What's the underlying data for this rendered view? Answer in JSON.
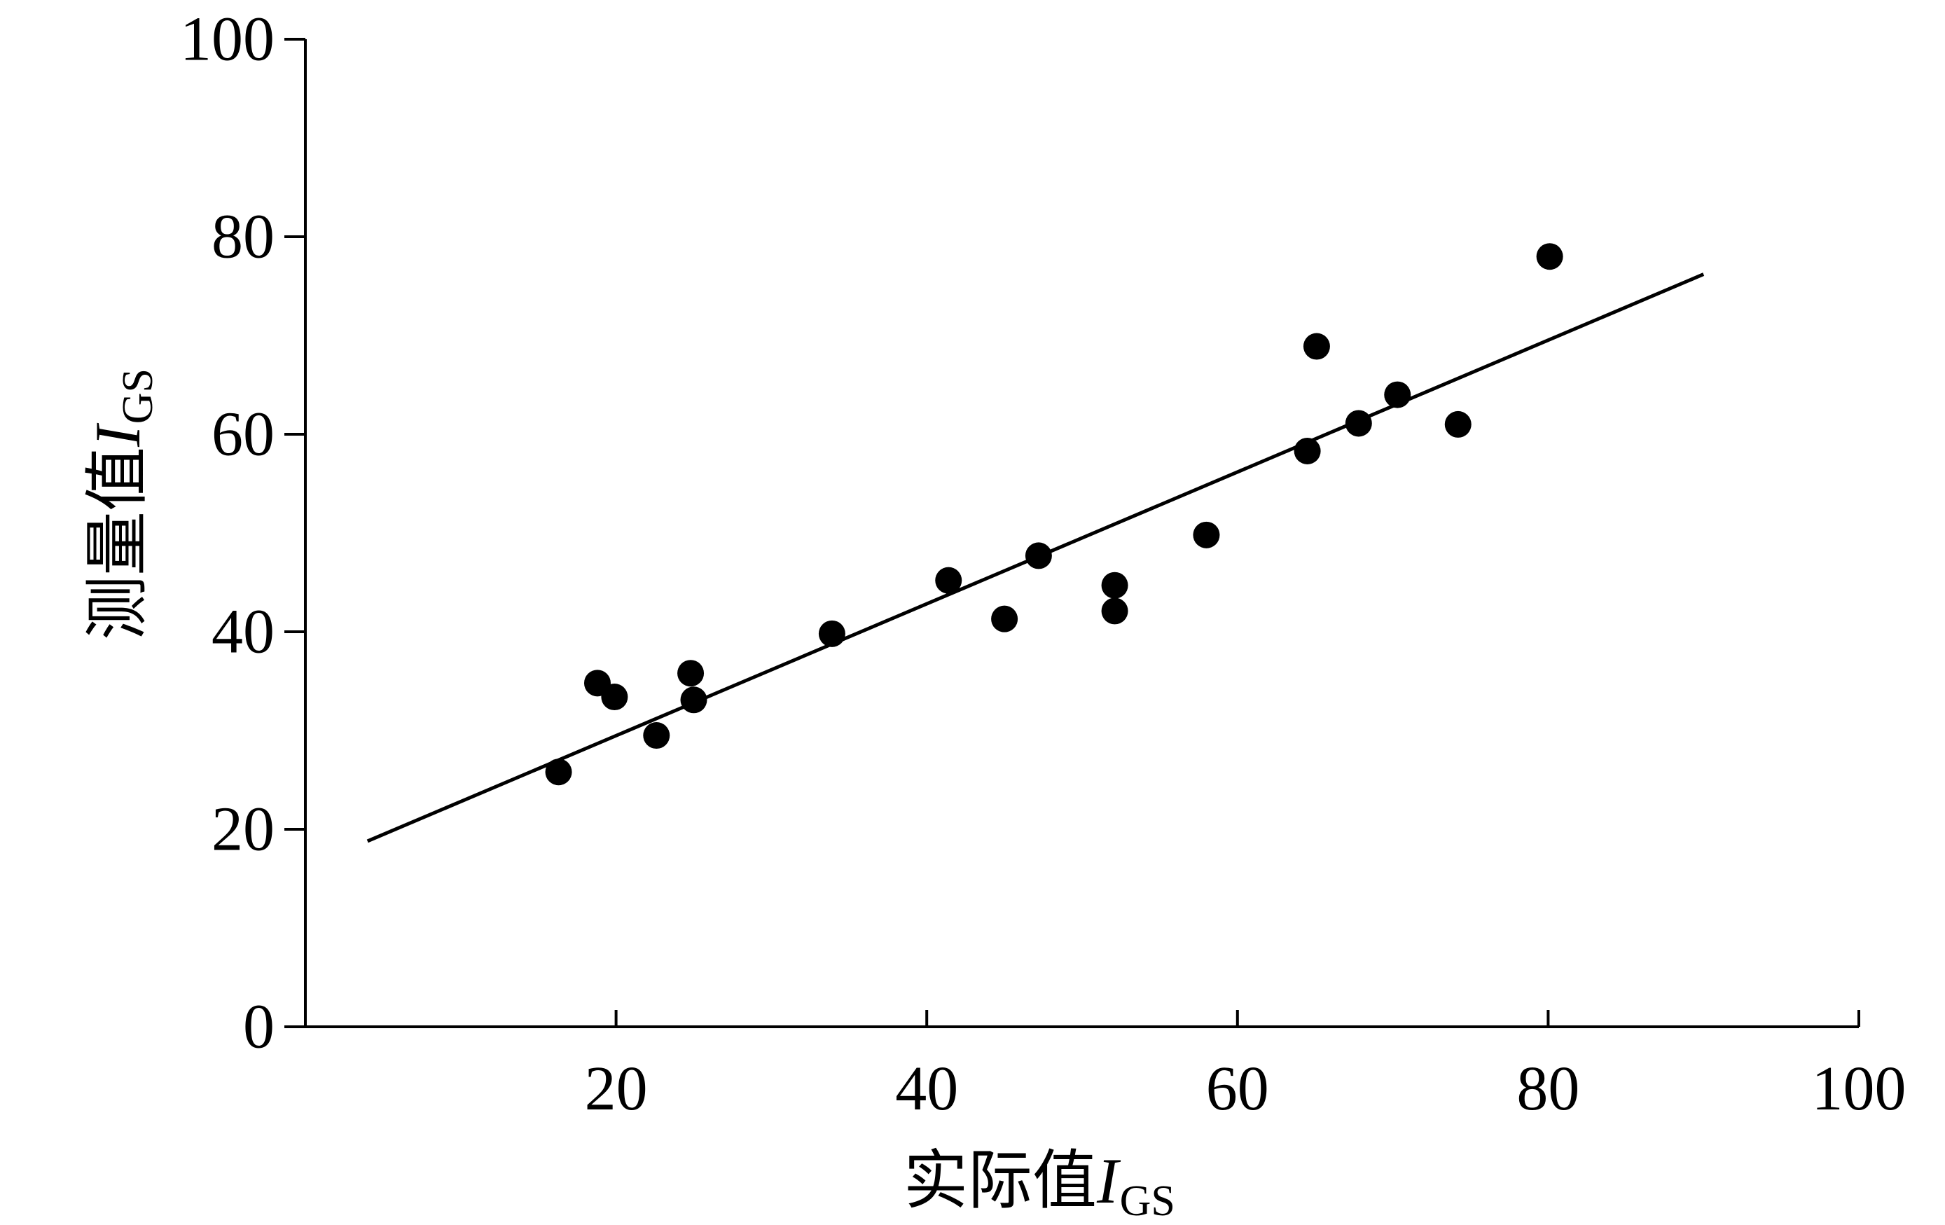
{
  "chart_data": {
    "type": "scatter",
    "title": "",
    "xlabel": {
      "prefix": "实际值",
      "symbol": "I",
      "subscript": "GS"
    },
    "ylabel": {
      "prefix": "测量值",
      "symbol": "I",
      "subscript": "GS"
    },
    "xlim": [
      0,
      100
    ],
    "ylim": [
      0,
      100
    ],
    "x_ticks": [
      20,
      40,
      60,
      80,
      100
    ],
    "y_ticks": [
      0,
      20,
      40,
      60,
      80,
      100
    ],
    "grid": false,
    "legend": "none",
    "marker_color": "#000000",
    "line_color": "#000000",
    "series": [
      {
        "points": [
          {
            "x": 16.3,
            "y": 25.8
          },
          {
            "x": 18.8,
            "y": 34.8
          },
          {
            "x": 19.9,
            "y": 33.4
          },
          {
            "x": 22.6,
            "y": 29.5
          },
          {
            "x": 24.8,
            "y": 35.8
          },
          {
            "x": 25.0,
            "y": 33.1
          },
          {
            "x": 33.9,
            "y": 39.8
          },
          {
            "x": 41.4,
            "y": 45.2
          },
          {
            "x": 45.0,
            "y": 41.3
          },
          {
            "x": 47.2,
            "y": 47.7
          },
          {
            "x": 52.1,
            "y": 44.7
          },
          {
            "x": 52.1,
            "y": 42.1
          },
          {
            "x": 58.0,
            "y": 49.8
          },
          {
            "x": 64.5,
            "y": 58.3
          },
          {
            "x": 65.1,
            "y": 68.9
          },
          {
            "x": 67.8,
            "y": 61.1
          },
          {
            "x": 70.3,
            "y": 64.0
          },
          {
            "x": 74.2,
            "y": 61.0
          },
          {
            "x": 80.1,
            "y": 78.0
          }
        ]
      }
    ],
    "fit_line": {
      "x": [
        4,
        90
      ],
      "y": [
        18.8,
        76.2
      ]
    }
  }
}
